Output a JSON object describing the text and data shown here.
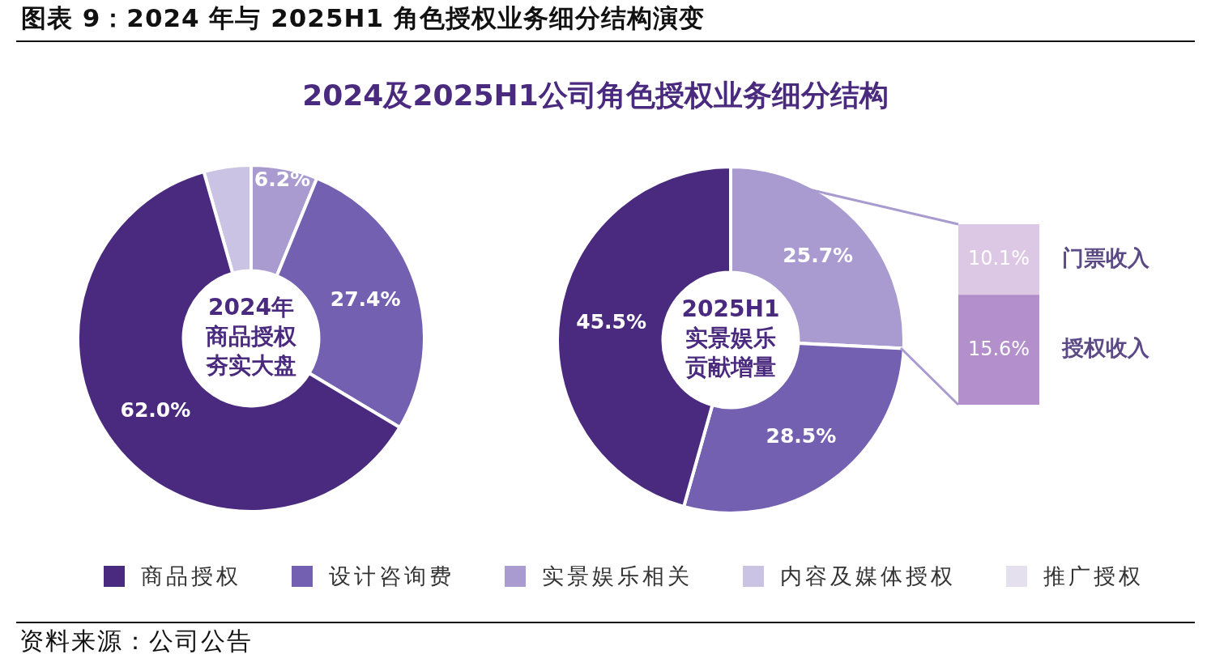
{
  "chart_data": [
    {
      "type": "donut",
      "title": "图表 9：2024 年与 2025H1 角色授权业务细分结构演变",
      "subtitle": "2024及2025H1公司角色授权业务细分结构",
      "categories": [
        "商品授权",
        "设计咨询费",
        "实景娱乐相关",
        "内容及媒体授权",
        "推广授权"
      ],
      "values": [
        62.0,
        27.4,
        6.2,
        4.4,
        0
      ],
      "colors": [
        "#4a2a7e",
        "#7460b0",
        "#a99bd0",
        "#cbc3e3",
        "#e4e0ee"
      ],
      "value_labels": [
        "62.0%",
        "27.4%",
        "6.2%",
        null,
        null
      ],
      "legend": "bottom",
      "annotations": [
        "2024年商品授权夯实大盘",
        "资料来源：公司公告"
      ]
    },
    {
      "type": "donut",
      "categories": [
        null,
        null,
        null,
        null,
        null
      ],
      "values": [
        45.5,
        28.5,
        25.7,
        null,
        null
      ],
      "colors": [
        "#4a2a7e",
        "#7460b0",
        "#a99bd0",
        "#cbc3e3",
        "#e4e0ee"
      ],
      "value_labels": [
        "45.5%",
        "28.5%",
        "25.7%",
        null,
        null
      ],
      "annotations": [
        "2025H1实景娱乐贡献增量"
      ]
    },
    {
      "type": "bar",
      "stacked": true,
      "categories": [
        null
      ],
      "series": [
        {
          "name": "授权收入",
          "color": "#b38fcb",
          "values": [
            15.6
          ],
          "value_labels": [
            "15.6%"
          ]
        },
        {
          "name": "门票收入",
          "color": "#dcc8e4",
          "values": [
            10.1
          ],
          "value_labels": [
            "10.1%"
          ]
        }
      ]
    }
  ]
}
